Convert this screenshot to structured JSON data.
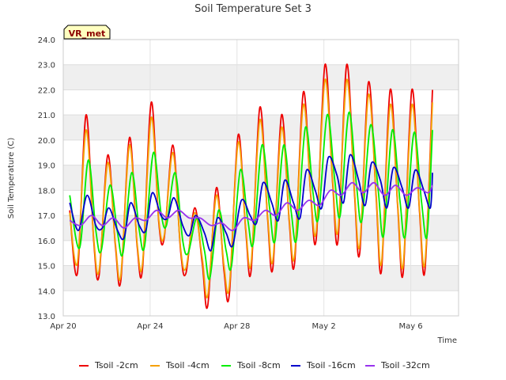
{
  "chart_data": {
    "type": "line",
    "title": "Soil Temperature Set 3",
    "xlabel": "Time",
    "ylabel": "Soil Temperature (C)",
    "badge": "VR_met",
    "xlim": [
      0,
      18.2
    ],
    "ylim": [
      13.0,
      24.0
    ],
    "yticks": [
      13.0,
      14.0,
      15.0,
      16.0,
      17.0,
      18.0,
      19.0,
      20.0,
      21.0,
      22.0,
      23.0,
      24.0
    ],
    "xticks": [
      {
        "day": 0,
        "label": "Apr 20"
      },
      {
        "day": 4,
        "label": "Apr 24"
      },
      {
        "day": 8,
        "label": "Apr 28"
      },
      {
        "day": 12,
        "label": "May 2"
      },
      {
        "day": 16,
        "label": "May 6"
      }
    ],
    "grid": true,
    "legend_position": "bottom",
    "series": [
      {
        "name": "Tsoil -2cm",
        "color": "#ee0000",
        "x": [
          0.3,
          0.65,
          1.05,
          1.4,
          1.65,
          2.05,
          2.4,
          2.65,
          3.05,
          3.4,
          3.65,
          4.05,
          4.4,
          4.65,
          5.05,
          5.4,
          5.65,
          6.05,
          6.4,
          6.65,
          7.05,
          7.4,
          7.65,
          8.05,
          8.4,
          8.65,
          9.05,
          9.4,
          9.65,
          10.05,
          10.4,
          10.65,
          11.05,
          11.4,
          11.65,
          12.05,
          12.4,
          12.65,
          13.05,
          13.4,
          13.65,
          14.05,
          14.4,
          14.65,
          15.05,
          15.4,
          15.65,
          16.05,
          16.4,
          16.65,
          17.0
        ],
        "y": [
          17.2,
          14.7,
          21.0,
          16.0,
          14.6,
          19.4,
          15.8,
          14.4,
          20.1,
          15.8,
          14.9,
          21.5,
          16.7,
          16.1,
          19.8,
          15.6,
          14.7,
          17.3,
          15.1,
          13.4,
          18.1,
          14.8,
          13.9,
          20.2,
          16.4,
          14.8,
          21.3,
          17.0,
          14.9,
          21.0,
          16.8,
          15.1,
          21.9,
          17.7,
          16.1,
          23.0,
          18.3,
          16.0,
          23.0,
          18.0,
          15.5,
          22.3,
          17.8,
          14.8,
          22.0,
          17.3,
          14.7,
          22.0,
          17.2,
          14.8,
          22.0
        ]
      },
      {
        "name": "Tsoil -4cm",
        "color": "#f5a000",
        "x": [
          0.3,
          0.65,
          1.05,
          1.4,
          1.65,
          2.05,
          2.4,
          2.65,
          3.05,
          3.4,
          3.65,
          4.05,
          4.4,
          4.65,
          5.05,
          5.4,
          5.65,
          6.05,
          6.4,
          6.65,
          7.05,
          7.4,
          7.65,
          8.05,
          8.4,
          8.65,
          9.05,
          9.4,
          9.65,
          10.05,
          10.4,
          10.65,
          11.05,
          11.4,
          11.65,
          12.05,
          12.4,
          12.65,
          13.05,
          13.4,
          13.65,
          14.05,
          14.4,
          14.65,
          15.05,
          15.4,
          15.65,
          16.05,
          16.4,
          16.65,
          17.0
        ],
        "y": [
          17.1,
          15.1,
          20.4,
          16.1,
          14.8,
          19.1,
          15.9,
          14.6,
          19.8,
          15.9,
          15.1,
          20.9,
          16.8,
          16.2,
          19.5,
          15.7,
          14.9,
          17.1,
          15.3,
          13.8,
          17.8,
          15.0,
          14.2,
          19.9,
          16.5,
          15.1,
          20.8,
          17.1,
          15.2,
          20.5,
          16.9,
          15.4,
          21.4,
          17.8,
          16.4,
          22.4,
          18.4,
          16.4,
          22.4,
          18.1,
          15.8,
          21.8,
          17.9,
          15.1,
          21.4,
          17.4,
          15.0,
          21.4,
          17.3,
          15.1,
          21.5
        ]
      },
      {
        "name": "Tsoil -8cm",
        "color": "#00ee00",
        "x": [
          0.3,
          0.75,
          1.15,
          1.5,
          1.75,
          2.15,
          2.5,
          2.75,
          3.15,
          3.5,
          3.75,
          4.15,
          4.5,
          4.75,
          5.15,
          5.5,
          5.75,
          6.15,
          6.5,
          6.75,
          7.15,
          7.5,
          7.75,
          8.15,
          8.5,
          8.75,
          9.15,
          9.5,
          9.75,
          10.15,
          10.5,
          10.75,
          11.15,
          11.5,
          11.75,
          12.15,
          12.5,
          12.75,
          13.15,
          13.5,
          13.75,
          14.15,
          14.5,
          14.75,
          15.15,
          15.5,
          15.75,
          16.15,
          16.5,
          16.75,
          17.0
        ],
        "y": [
          17.8,
          15.7,
          19.2,
          16.4,
          15.6,
          18.2,
          16.3,
          15.5,
          18.7,
          16.4,
          15.8,
          19.5,
          17.1,
          16.6,
          18.7,
          16.0,
          15.5,
          16.9,
          15.6,
          14.5,
          17.2,
          15.6,
          15.0,
          18.8,
          16.8,
          15.9,
          19.8,
          17.3,
          16.0,
          19.8,
          17.1,
          16.1,
          20.5,
          17.9,
          16.9,
          21.0,
          18.4,
          17.0,
          21.1,
          18.2,
          16.8,
          20.6,
          18.0,
          16.2,
          20.4,
          17.6,
          16.2,
          20.3,
          17.5,
          16.2,
          20.4
        ]
      },
      {
        "name": "Tsoil -16cm",
        "color": "#0000cc",
        "x": [
          0.3,
          0.7,
          1.1,
          1.5,
          1.8,
          2.1,
          2.5,
          2.8,
          3.1,
          3.5,
          3.8,
          4.1,
          4.5,
          4.8,
          5.1,
          5.5,
          5.8,
          6.1,
          6.5,
          6.8,
          7.1,
          7.5,
          7.8,
          8.2,
          8.6,
          8.9,
          9.2,
          9.6,
          9.9,
          10.2,
          10.6,
          10.9,
          11.2,
          11.6,
          11.9,
          12.2,
          12.6,
          12.9,
          13.2,
          13.6,
          13.9,
          14.2,
          14.6,
          14.9,
          15.2,
          15.6,
          15.9,
          16.2,
          16.6,
          16.9,
          17.0
        ],
        "y": [
          17.5,
          16.4,
          17.8,
          16.6,
          16.5,
          17.3,
          16.4,
          16.1,
          17.5,
          16.6,
          16.4,
          17.9,
          17.0,
          16.9,
          17.7,
          16.6,
          16.2,
          17.0,
          16.3,
          15.6,
          16.9,
          16.3,
          15.8,
          17.6,
          17.0,
          16.7,
          18.3,
          17.5,
          16.8,
          18.4,
          17.5,
          16.9,
          18.8,
          18.0,
          17.3,
          19.3,
          18.6,
          17.5,
          19.4,
          18.4,
          17.4,
          19.1,
          18.4,
          17.3,
          18.9,
          18.1,
          17.3,
          18.8,
          18.0,
          17.3,
          18.7
        ]
      },
      {
        "name": "Tsoil -32cm",
        "color": "#9933ee",
        "x": [
          0.3,
          0.8,
          1.3,
          1.8,
          2.3,
          2.8,
          3.3,
          3.8,
          4.3,
          4.8,
          5.3,
          5.8,
          6.3,
          6.8,
          7.3,
          7.8,
          8.3,
          8.8,
          9.3,
          9.8,
          10.3,
          10.8,
          11.3,
          11.8,
          12.3,
          12.8,
          13.3,
          13.8,
          14.3,
          14.8,
          15.3,
          15.8,
          16.3,
          16.8,
          17.0
        ],
        "y": [
          16.8,
          16.6,
          17.0,
          16.6,
          16.9,
          16.5,
          16.9,
          16.8,
          17.2,
          16.9,
          17.2,
          16.9,
          16.9,
          16.6,
          16.7,
          16.4,
          16.9,
          16.8,
          17.2,
          17.0,
          17.5,
          17.2,
          17.6,
          17.4,
          18.0,
          17.8,
          18.3,
          17.9,
          18.3,
          17.8,
          18.2,
          17.8,
          18.1,
          17.9,
          18.2
        ]
      }
    ]
  }
}
